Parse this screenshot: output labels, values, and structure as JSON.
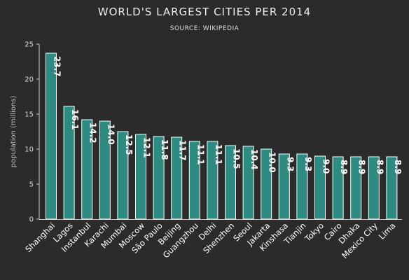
{
  "chart_data": {
    "type": "bar",
    "title": "WORLD'S LARGEST CITIES PER 2014",
    "subtitle": "SOURCE: WIKIPEDIA",
    "ylabel": "population (millions)",
    "xlabel": "",
    "ylim": [
      0,
      25
    ],
    "yticks": [
      0,
      5,
      10,
      15,
      20,
      25
    ],
    "grid": false,
    "bar_color": "#2e8b82",
    "categories": [
      "Shanghai",
      "Lagos",
      "Instanbul",
      "Karachi",
      "Mumbai",
      "Moscow",
      "São Paulo",
      "Beijing",
      "Guangzhou",
      "Delhi",
      "Shenzhen",
      "Seoul",
      "Jakarta",
      "Kinshasa",
      "Tianjin",
      "Tokyo",
      "Cairo",
      "Dhaka",
      "Mexico City",
      "Lima"
    ],
    "values": [
      23.7,
      16.1,
      14.2,
      14.0,
      12.5,
      12.1,
      11.8,
      11.7,
      11.1,
      11.1,
      10.5,
      10.4,
      10.0,
      9.3,
      9.3,
      9.0,
      8.9,
      8.9,
      8.9,
      8.9
    ],
    "value_labels": [
      "23.7",
      "16.1",
      "14.2",
      "14.0",
      "12.5",
      "12.1",
      "11.8",
      "11.7",
      "11.1",
      "11.1",
      "10.5",
      "10.4",
      "10.0",
      "9.3",
      "9.3",
      "9.0",
      "8.9",
      "8.9",
      "8.9",
      "8.9"
    ]
  }
}
